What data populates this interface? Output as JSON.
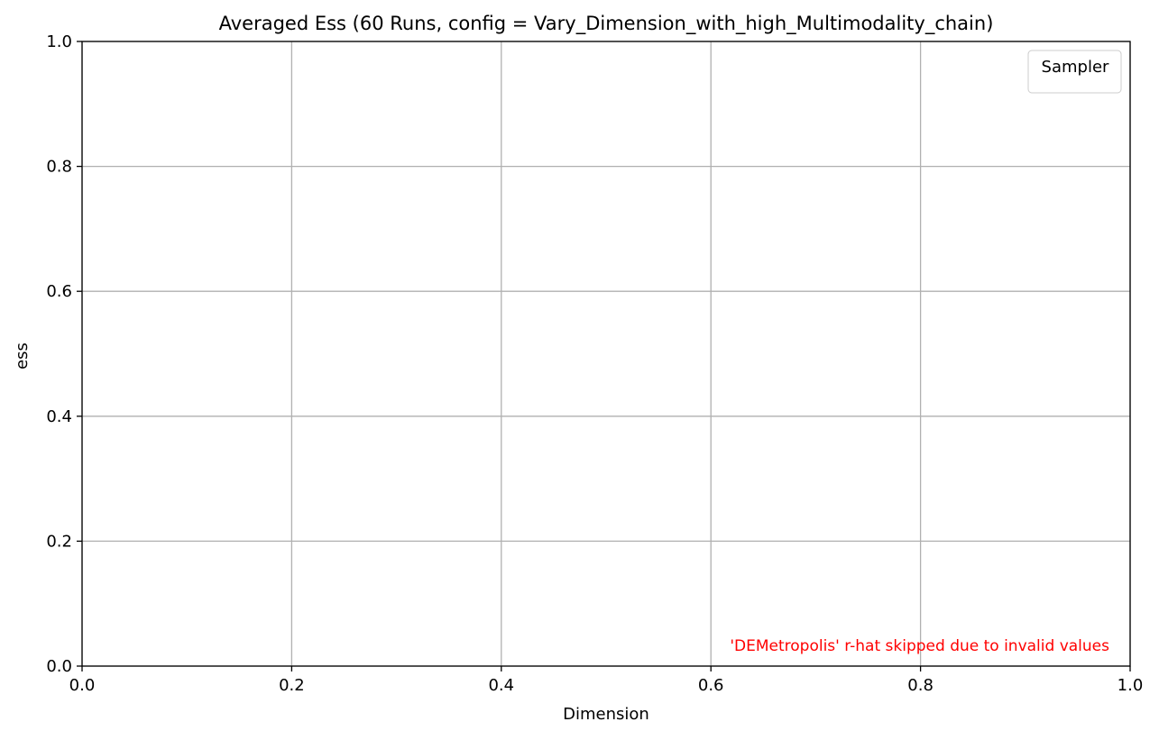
{
  "chart_data": {
    "type": "line",
    "title": "Averaged Ess (60 Runs, config = Vary_Dimension_with_high_Multimodality_chain)",
    "xlabel": "Dimension",
    "ylabel": "ess",
    "xlim": [
      0.0,
      1.0
    ],
    "ylim": [
      0.0,
      1.0
    ],
    "x_ticks": [
      "0.0",
      "0.2",
      "0.4",
      "0.6",
      "0.8",
      "1.0"
    ],
    "y_ticks": [
      "0.0",
      "0.2",
      "0.4",
      "0.6",
      "0.8",
      "1.0"
    ],
    "x_tick_values": [
      0.0,
      0.2,
      0.4,
      0.6,
      0.8,
      1.0
    ],
    "y_tick_values": [
      0.0,
      0.2,
      0.4,
      0.6,
      0.8,
      1.0
    ],
    "grid": true,
    "legend": {
      "title": "Sampler",
      "placement": "top-right",
      "entries": []
    },
    "series": [],
    "annotation": {
      "text": "'DEMetropolis' r-hat skipped due to invalid values",
      "color": "#ff0000",
      "placement": "bottom-right"
    }
  },
  "colors": {
    "grid": "#b0b0b0",
    "axis": "#000000",
    "annotation": "#ff0000"
  }
}
